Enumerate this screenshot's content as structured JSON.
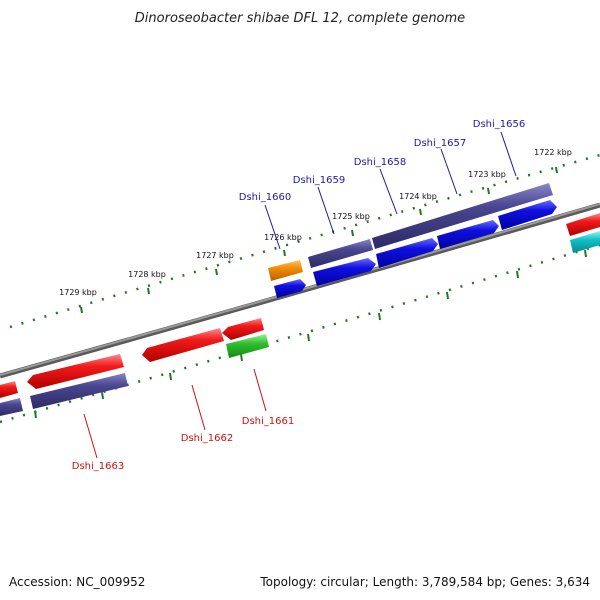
{
  "title": "Dinoroseobacter shibae DFL 12, complete genome",
  "footer": {
    "accession": "Accession: NC_009952",
    "summary": "Topology: circular; Length: 3,789,584 bp; Genes: 3,634"
  },
  "ticks": [
    "1722 kbp",
    "1723 kbp",
    "1724 kbp",
    "1725 kbp",
    "1726 kbp",
    "1727 kbp",
    "1728 kbp",
    "1729 kbp"
  ],
  "gene_labels": {
    "top": [
      "Dshi_1656",
      "Dshi_1657",
      "Dshi_1658",
      "Dshi_1659",
      "Dshi_1660"
    ],
    "bottom": [
      "Dshi_1661",
      "Dshi_1662",
      "Dshi_1663"
    ]
  },
  "colors": {
    "backbone": "#7a7a7a",
    "dots": "#1f7a1f",
    "cds_forward": "#1010e0",
    "gene_forward": "#4a4690",
    "cds_reverse": "#ee1111",
    "gene_reverse": "#4a4690",
    "orange": "#f08c00",
    "green": "#2fbf2f",
    "cyan": "#10c0c8",
    "label_forward": "#1a1aa8",
    "label_reverse": "#cc1111"
  }
}
